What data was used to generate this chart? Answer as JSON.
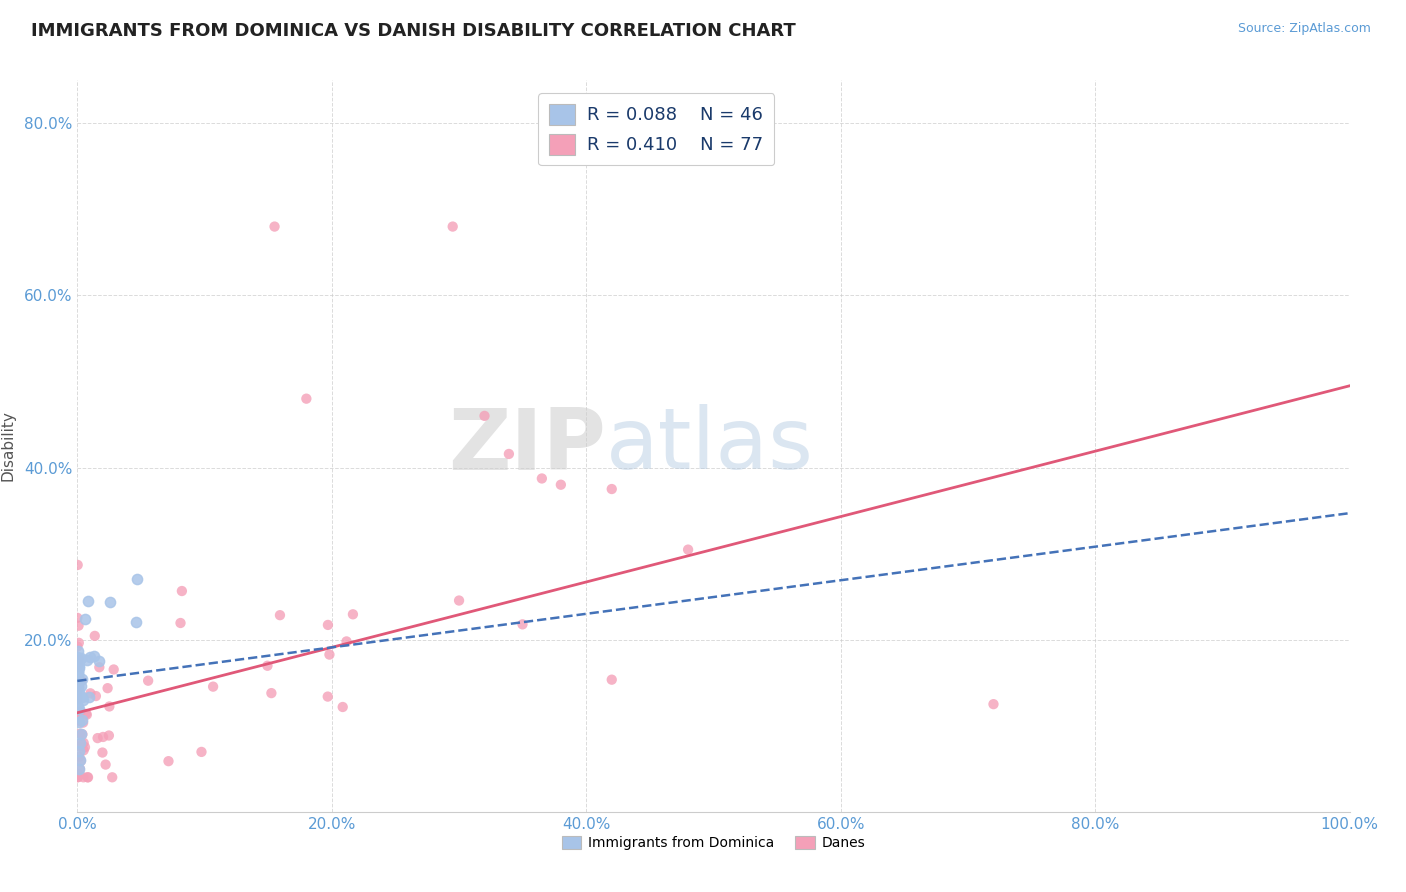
{
  "title": "IMMIGRANTS FROM DOMINICA VS DANISH DISABILITY CORRELATION CHART",
  "source": "Source: ZipAtlas.com",
  "ylabel": "Disability",
  "xlim": [
    0.0,
    1.0
  ],
  "ylim": [
    0.0,
    0.85
  ],
  "xtick_labels": [
    "0.0%",
    "20.0%",
    "40.0%",
    "60.0%",
    "80.0%",
    "100.0%"
  ],
  "ytick_labels": [
    "20.0%",
    "40.0%",
    "60.0%",
    "80.0%"
  ],
  "legend_label1": "Immigrants from Dominica",
  "legend_label2": "Danes",
  "R1": 0.088,
  "N1": 46,
  "R2": 0.41,
  "N2": 77,
  "blue_color": "#a8c4e8",
  "pink_color": "#f4a0b8",
  "blue_line_color": "#4472b8",
  "pink_line_color": "#e05878",
  "background_color": "#ffffff",
  "grid_color": "#cccccc",
  "title_color": "#222222",
  "source_color": "#5b9bd5",
  "tick_color": "#5b9bd5",
  "ylabel_color": "#555555",
  "legend_text_color": "#1a3a6b",
  "watermark_zip": "ZIP",
  "watermark_atlas": "atlas",
  "title_fontsize": 13,
  "axis_fontsize": 11,
  "tick_fontsize": 11,
  "legend_fontsize": 13
}
